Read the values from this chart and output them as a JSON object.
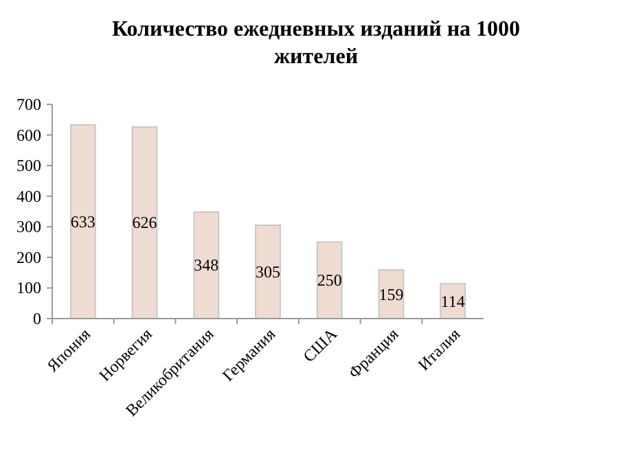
{
  "chart_data": {
    "type": "bar",
    "title": "Количество ежедневных изданий на 1000 жителей",
    "categories": [
      "Япония",
      "Норвегия",
      "Великобритания",
      "Германия",
      "США",
      "Франция",
      "Италия"
    ],
    "values": [
      633,
      626,
      348,
      305,
      250,
      159,
      114
    ],
    "color": "#eedcd2",
    "ylim": [
      0,
      700
    ],
    "yticks": [
      0,
      100,
      200,
      300,
      400,
      500,
      600,
      700
    ],
    "data_labels": true,
    "grid": false
  }
}
